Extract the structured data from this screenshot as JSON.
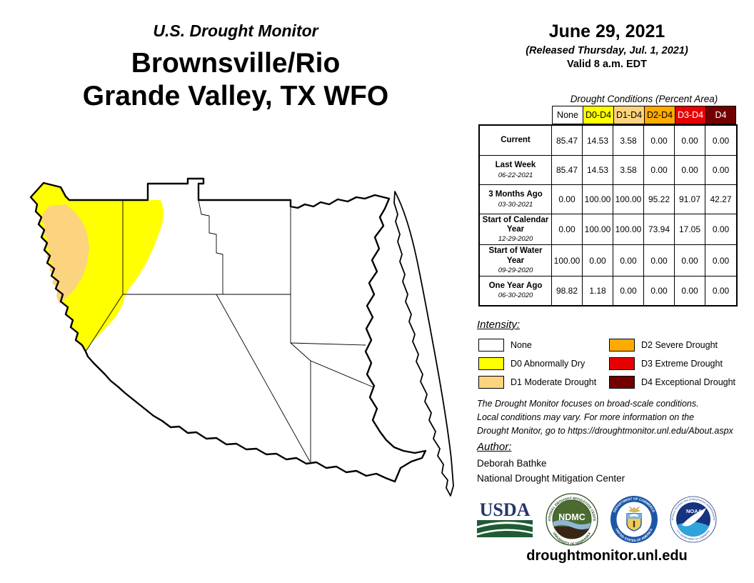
{
  "header": {
    "kicker": "U.S. Drought Monitor",
    "title_line1": "Brownsville/Rio",
    "title_line2": "Grande Valley, TX WFO"
  },
  "date_block": {
    "date": "June 29, 2021",
    "released": "(Released Thursday, Jul. 1, 2021)",
    "valid": "Valid 8 a.m. EDT"
  },
  "table": {
    "caption": "Drought Conditions (Percent Area)",
    "columns": [
      {
        "label": "None",
        "bg": "#FFFFFF",
        "fg": "#000000"
      },
      {
        "label": "D0-D4",
        "bg": "#FFFF00",
        "fg": "#000000"
      },
      {
        "label": "D1-D4",
        "bg": "#FCD37F",
        "fg": "#000000"
      },
      {
        "label": "D2-D4",
        "bg": "#FFAA00",
        "fg": "#000000"
      },
      {
        "label": "D3-D4",
        "bg": "#E60000",
        "fg": "#FFFFFF"
      },
      {
        "label": "D4",
        "bg": "#730000",
        "fg": "#FFFFFF"
      }
    ],
    "rows": [
      {
        "label": "Current",
        "date": "",
        "values": [
          "85.47",
          "14.53",
          "3.58",
          "0.00",
          "0.00",
          "0.00"
        ]
      },
      {
        "label": "Last Week",
        "date": "06-22-2021",
        "values": [
          "85.47",
          "14.53",
          "3.58",
          "0.00",
          "0.00",
          "0.00"
        ]
      },
      {
        "label": "3 Months Ago",
        "date": "03-30-2021",
        "values": [
          "0.00",
          "100.00",
          "100.00",
          "95.22",
          "91.07",
          "42.27"
        ]
      },
      {
        "label": "Start of Calendar Year",
        "date": "12-29-2020",
        "values": [
          "0.00",
          "100.00",
          "100.00",
          "73.94",
          "17.05",
          "0.00"
        ]
      },
      {
        "label": "Start of Water Year",
        "date": "09-29-2020",
        "values": [
          "100.00",
          "0.00",
          "0.00",
          "0.00",
          "0.00",
          "0.00"
        ]
      },
      {
        "label": "One Year Ago",
        "date": "06-30-2020",
        "values": [
          "98.82",
          "1.18",
          "0.00",
          "0.00",
          "0.00",
          "0.00"
        ]
      }
    ]
  },
  "legend": {
    "heading": "Intensity:",
    "items": [
      {
        "label": "None",
        "color": "#FFFFFF"
      },
      {
        "label": "D0 Abnormally Dry",
        "color": "#FFFF00"
      },
      {
        "label": "D1 Moderate Drought",
        "color": "#FCD37F"
      },
      {
        "label": "D2 Severe Drought",
        "color": "#FFAA00"
      },
      {
        "label": "D3 Extreme Drought",
        "color": "#E60000"
      },
      {
        "label": "D4 Exceptional Drought",
        "color": "#730000"
      }
    ]
  },
  "map": {
    "d0_color": "#FFFF00",
    "d1_color": "#FCD37F",
    "none_color": "#FFFFFF",
    "border_color": "#000000"
  },
  "disclaimer_lines": [
    "The Drought Monitor focuses on broad-scale conditions.",
    "Local conditions may vary. For more information on the",
    "Drought Monitor, go to https://droughtmonitor.unl.edu/About.aspx"
  ],
  "author": {
    "heading": "Author:",
    "name": "Deborah Bathke",
    "org": "National Drought Mitigation Center"
  },
  "footer": {
    "url": "droughtmonitor.unl.edu",
    "usda": {
      "text": "USDA"
    },
    "ndmc": {
      "text": "NDMC",
      "ring_top": "NATIONAL DROUGHT MITIGATION CENTER",
      "ring_bottom": "UNIVERSITY OF NEBRASKA"
    },
    "doc": {
      "ring_top": "DEPARTMENT OF COMMERCE",
      "ring_bottom": "UNITED STATES OF AMERICA"
    },
    "noaa": {
      "text": "NOAA",
      "ring_top": "NATIONAL OCEANIC AND ATMOSPHERIC ADMINISTRATION",
      "ring_bottom": "U.S. DEPARTMENT OF COMMERCE"
    }
  }
}
